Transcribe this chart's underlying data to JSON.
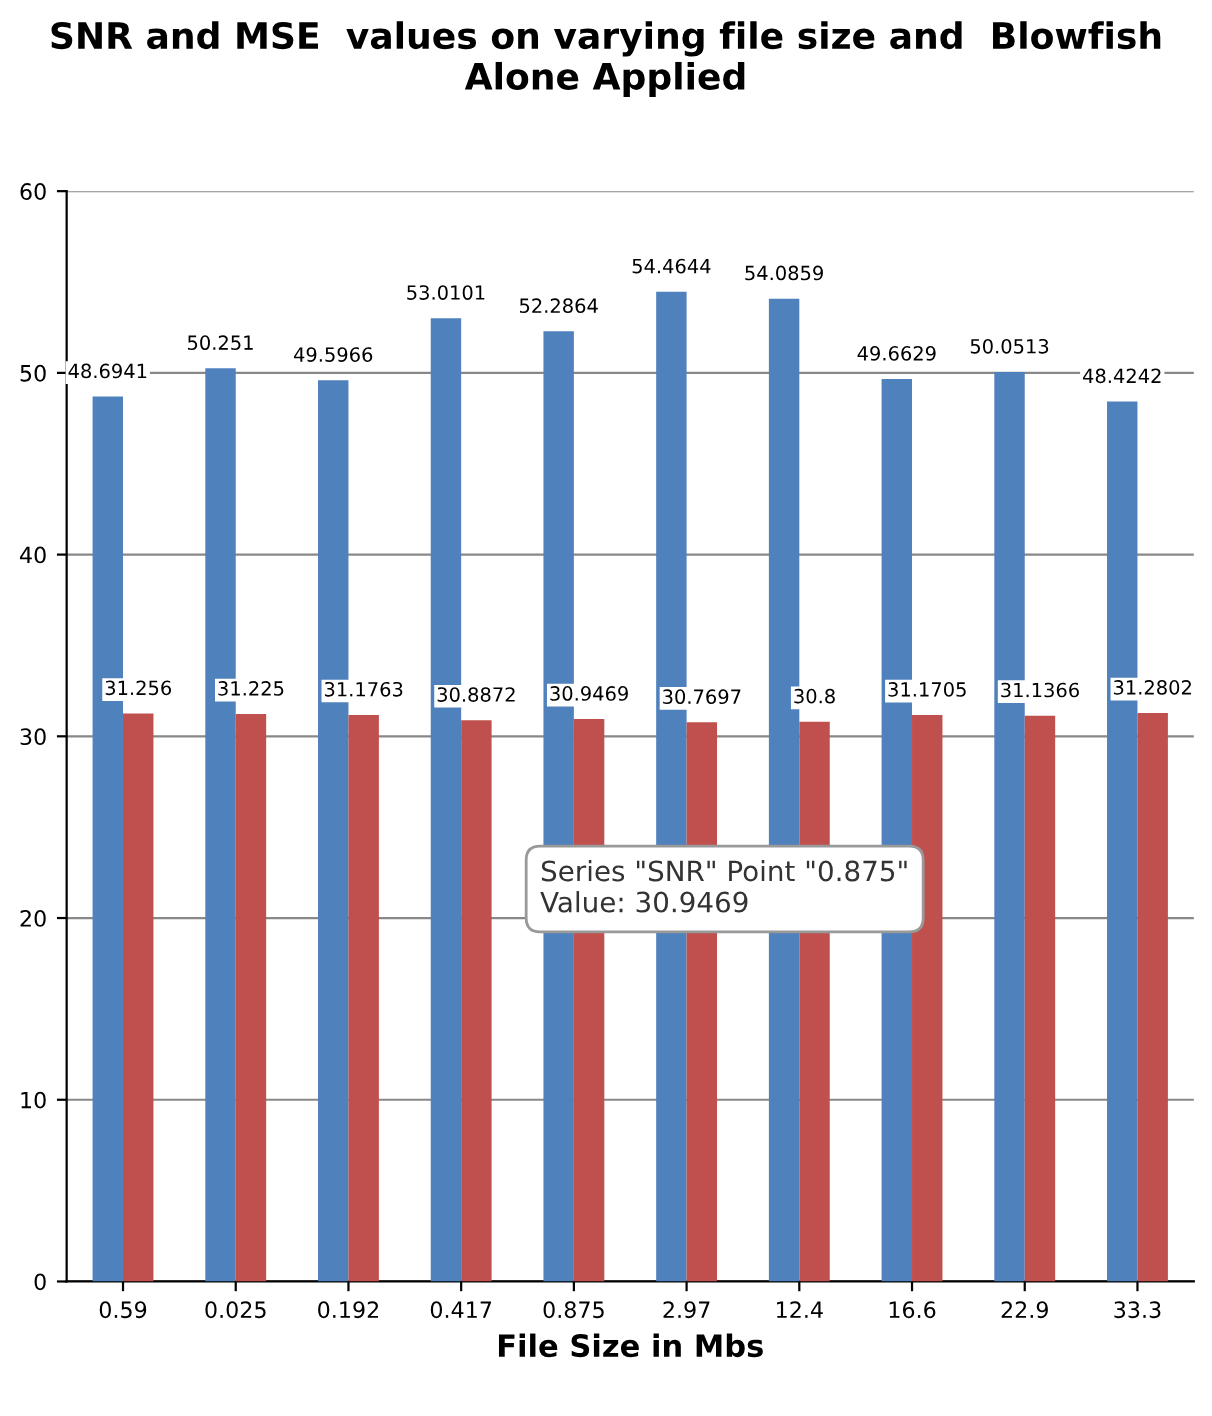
{
  "chart_data": {
    "type": "bar",
    "title": "SNR and MSE  values on varying file size and  Blowfish Alone Applied",
    "xlabel": "File Size in Mbs",
    "categories": [
      "0.59",
      "0.025",
      "0.192",
      "0.417",
      "0.875",
      "2.97",
      "12.4",
      "16.6",
      "22.9",
      "33.3"
    ],
    "series": [
      {
        "color": "#4f81bd",
        "values": [
          48.6941,
          50.251,
          49.5966,
          53.0101,
          52.2864,
          54.4644,
          54.0859,
          49.6629,
          50.0513,
          48.4242
        ]
      },
      {
        "color": "#c0504d",
        "values": [
          31.256,
          31.225,
          31.1763,
          30.8872,
          30.9469,
          30.7697,
          30.8,
          31.1705,
          31.1366,
          31.2802
        ]
      }
    ],
    "ylim": [
      0,
      60
    ],
    "yticks": [
      0,
      10,
      20,
      30,
      40,
      50,
      60
    ],
    "grid": "y",
    "data_labels": true,
    "legend": false,
    "annotations": [
      "Series \"SNR\" Point \"0.875\"\nValue: 30.9469"
    ]
  }
}
